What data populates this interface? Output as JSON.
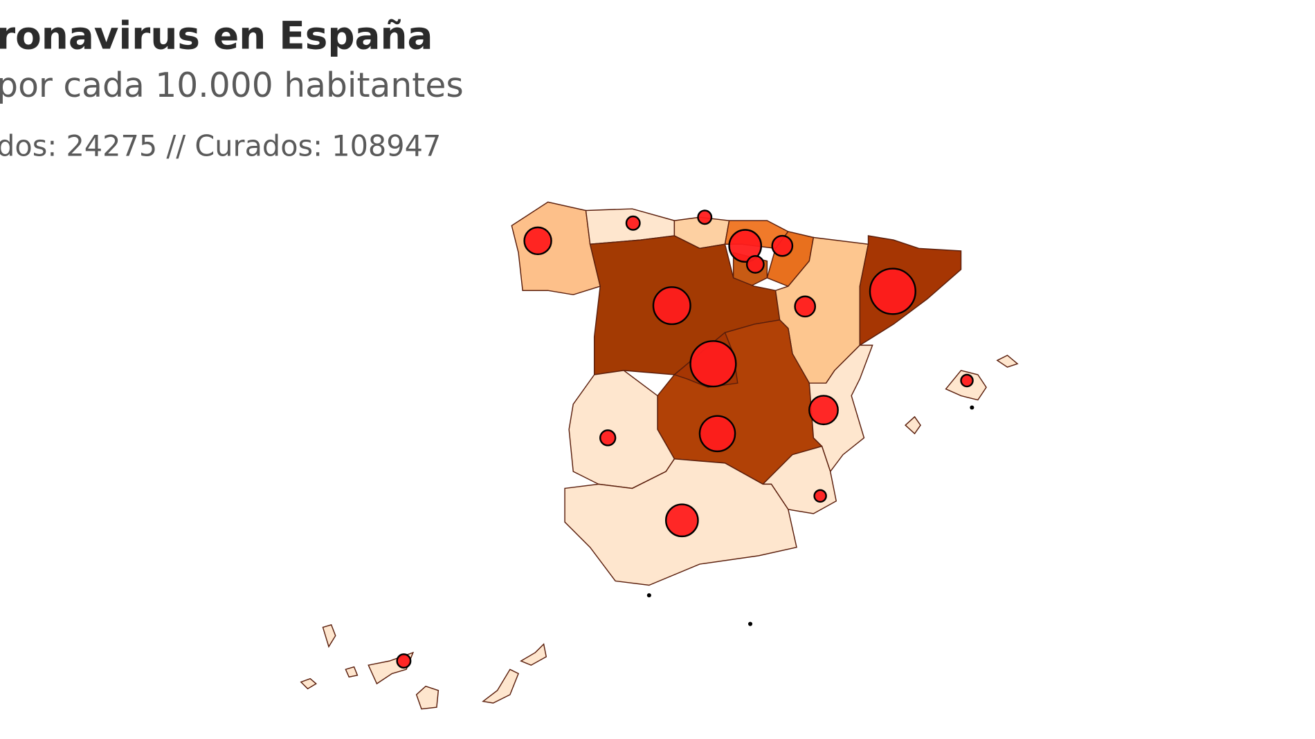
{
  "header": {
    "title": "ronavirus en España",
    "subtitle": "por cada 10.000 habitantes",
    "stats": "dos: 24275 // Curados: 108947"
  }
}
